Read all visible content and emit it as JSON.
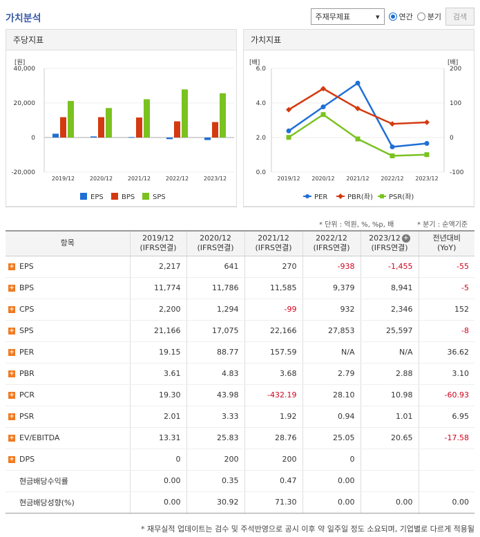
{
  "header": {
    "title": "가치분석",
    "select_value": "주재무제표",
    "radio_annual": "연간",
    "radio_quarter": "분기",
    "search_label": "검색"
  },
  "panels": {
    "left_title": "주당지표",
    "right_title": "가치지표"
  },
  "colors": {
    "eps": "#1f6fd6",
    "bps": "#d43a10",
    "sps": "#7ac21f",
    "per": "#1f6fd6",
    "pbr": "#d43a10",
    "psr": "#7ac21f"
  },
  "chart_data": [
    {
      "type": "bar",
      "unit": "[원]",
      "categories": [
        "2019/12",
        "2020/12",
        "2021/12",
        "2022/12",
        "2023/12"
      ],
      "ylim": [
        -20000,
        40000
      ],
      "yticks": [
        "40,000",
        "20,000",
        "0",
        "-20,000"
      ],
      "series": [
        {
          "name": "EPS",
          "values": [
            2217,
            641,
            270,
            -938,
            -1455
          ]
        },
        {
          "name": "BPS",
          "values": [
            11774,
            11786,
            11585,
            9379,
            8941
          ]
        },
        {
          "name": "SPS",
          "values": [
            21166,
            17075,
            22166,
            27853,
            25597
          ]
        }
      ],
      "legend": "bottom"
    },
    {
      "type": "line",
      "unit_left": "[배]",
      "unit_right": "[배]",
      "categories": [
        "2019/12",
        "2020/12",
        "2021/12",
        "2022/12",
        "2023/12"
      ],
      "ylim_left": [
        0,
        6
      ],
      "ylim_right": [
        -100,
        200
      ],
      "yticks_left": [
        "6.0",
        "4.0",
        "2.0",
        "0.0"
      ],
      "yticks_right": [
        "200",
        "100",
        "0",
        "-100"
      ],
      "series": [
        {
          "name": "PER",
          "axis": "right",
          "values": [
            19.15,
            88.77,
            157.59,
            -27,
            -17
          ]
        },
        {
          "name": "PBR(좌)",
          "axis": "left",
          "values": [
            3.61,
            4.83,
            3.68,
            2.79,
            2.88
          ]
        },
        {
          "name": "PSR(좌)",
          "axis": "left",
          "values": [
            2.01,
            3.33,
            1.92,
            0.94,
            1.01
          ]
        }
      ],
      "legend": "bottom"
    }
  ],
  "notes": {
    "unit": "* 단위 : 억원, %, %p, 배",
    "quarter": "* 분기 : 순액기준"
  },
  "table": {
    "headers": [
      {
        "l1": "항목",
        "l2": ""
      },
      {
        "l1": "2019/12",
        "l2": "(IFRS연결)"
      },
      {
        "l1": "2020/12",
        "l2": "(IFRS연결)"
      },
      {
        "l1": "2021/12",
        "l2": "(IFRS연결)"
      },
      {
        "l1": "2022/12",
        "l2": "(IFRS연결)"
      },
      {
        "l1": "2023/12",
        "l2": "(IFRS연결)"
      },
      {
        "l1": "전년대비",
        "l2": "(YoY)"
      }
    ],
    "rows": [
      {
        "label": "EPS",
        "plus": true,
        "cells": [
          "2,217",
          "641",
          "270",
          "-938",
          "-1,455",
          "-55"
        ]
      },
      {
        "label": "BPS",
        "plus": true,
        "cells": [
          "11,774",
          "11,786",
          "11,585",
          "9,379",
          "8,941",
          "-5"
        ]
      },
      {
        "label": "CPS",
        "plus": true,
        "cells": [
          "2,200",
          "1,294",
          "-99",
          "932",
          "2,346",
          "152"
        ]
      },
      {
        "label": "SPS",
        "plus": true,
        "cells": [
          "21,166",
          "17,075",
          "22,166",
          "27,853",
          "25,597",
          "-8"
        ]
      },
      {
        "label": "PER",
        "plus": true,
        "cells": [
          "19.15",
          "88.77",
          "157.59",
          "N/A",
          "N/A",
          "36.62"
        ]
      },
      {
        "label": "PBR",
        "plus": true,
        "cells": [
          "3.61",
          "4.83",
          "3.68",
          "2.79",
          "2.88",
          "3.10"
        ]
      },
      {
        "label": "PCR",
        "plus": true,
        "cells": [
          "19.30",
          "43.98",
          "-432.19",
          "28.10",
          "10.98",
          "-60.93"
        ]
      },
      {
        "label": "PSR",
        "plus": true,
        "cells": [
          "2.01",
          "3.33",
          "1.92",
          "0.94",
          "1.01",
          "6.95"
        ]
      },
      {
        "label": "EV/EBITDA",
        "plus": true,
        "cells": [
          "13.31",
          "25.83",
          "28.76",
          "25.05",
          "20.65",
          "-17.58"
        ]
      },
      {
        "label": "DPS",
        "plus": true,
        "cells": [
          "0",
          "200",
          "200",
          "0",
          "",
          ""
        ]
      },
      {
        "label": "현금배당수익률",
        "plus": false,
        "cells": [
          "0.00",
          "0.35",
          "0.47",
          "0.00",
          "",
          ""
        ]
      },
      {
        "label": "현금배당성향(%)",
        "plus": false,
        "cells": [
          "0.00",
          "30.92",
          "71.30",
          "0.00",
          "0.00",
          "0.00"
        ]
      }
    ]
  },
  "footer": "* 재무실적 업데이트는 검수 및 주석반영으로 공시 이후 약 일주일 정도 소요되며, 기업별로 다르게 적용될"
}
